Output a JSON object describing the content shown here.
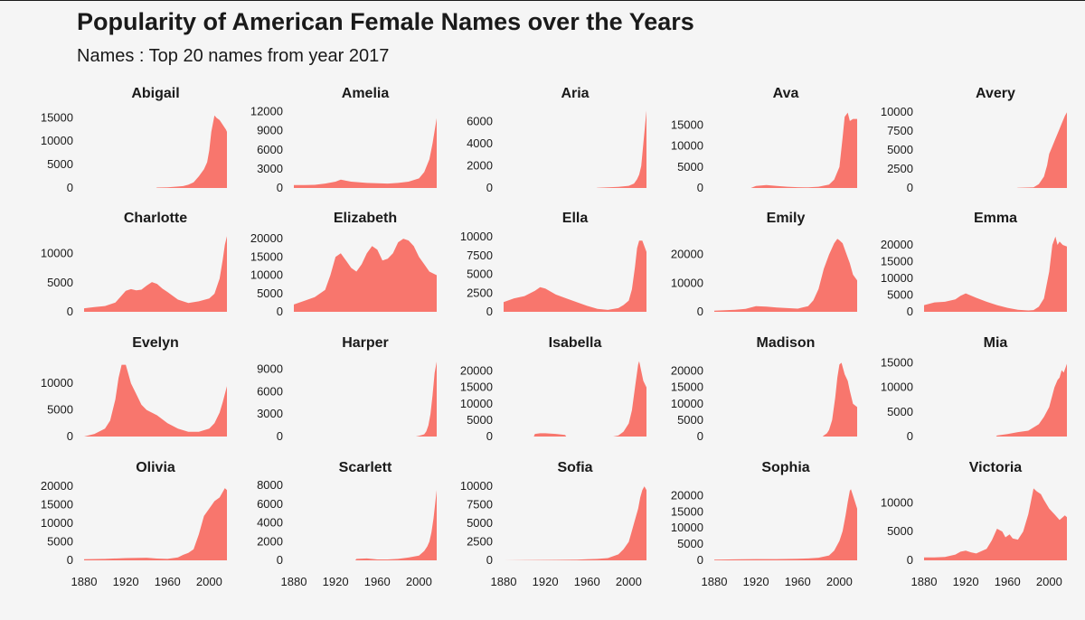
{
  "title": "Popularity of American Female Names over the Years",
  "subtitle": "Names : Top 20 names from year 2017",
  "colors": {
    "fill": "#f8766d",
    "background": "#f5f5f5",
    "text": "#1a1a1a"
  },
  "chart_data": {
    "type": "area",
    "layout": "small-multiples 4 rows x 5 columns",
    "grid": false,
    "x_range": [
      1880,
      2017
    ],
    "x_ticks": [
      1880,
      1920,
      1960,
      2000
    ],
    "panels": [
      {
        "name": "Abigail",
        "ylim": [
          0,
          17000
        ],
        "y_ticks": [
          0,
          5000,
          10000,
          15000
        ],
        "x": [
          1880,
          1949,
          1950,
          1960,
          1970,
          1975,
          1980,
          1985,
          1990,
          1995,
          1998,
          2000,
          2002,
          2005,
          2007,
          2010,
          2013,
          2016,
          2017
        ],
        "y": [
          0,
          0,
          100,
          150,
          300,
          400,
          700,
          1200,
          2500,
          4000,
          5500,
          8000,
          12000,
          15500,
          15000,
          14500,
          13500,
          12500,
          12000
        ]
      },
      {
        "name": "Amelia",
        "ylim": [
          0,
          12500
        ],
        "y_ticks": [
          0,
          3000,
          6000,
          9000,
          12000
        ],
        "x": [
          1880,
          1890,
          1900,
          1910,
          1920,
          1925,
          1935,
          1950,
          1960,
          1970,
          1980,
          1990,
          2000,
          2005,
          2010,
          2013,
          2015,
          2017
        ],
        "y": [
          450,
          450,
          500,
          700,
          1000,
          1300,
          1000,
          800,
          750,
          700,
          800,
          1000,
          1500,
          2500,
          4500,
          7000,
          9000,
          11000
        ]
      },
      {
        "name": "Aria",
        "ylim": [
          0,
          7200
        ],
        "y_ticks": [
          0,
          2000,
          4000,
          6000
        ],
        "x": [
          1880,
          1969,
          1970,
          1990,
          2000,
          2005,
          2008,
          2010,
          2012,
          2014,
          2016,
          2017
        ],
        "y": [
          0,
          0,
          20,
          100,
          200,
          400,
          800,
          1200,
          2000,
          4000,
          6000,
          7000
        ]
      },
      {
        "name": "Ava",
        "ylim": [
          0,
          19000
        ],
        "y_ticks": [
          0,
          5000,
          10000,
          15000
        ],
        "x": [
          1880,
          1915,
          1920,
          1930,
          1940,
          1950,
          1960,
          1970,
          1980,
          1990,
          1995,
          2000,
          2003,
          2005,
          2008,
          2010,
          2013,
          2017
        ],
        "y": [
          0,
          0,
          500,
          700,
          500,
          300,
          200,
          150,
          300,
          800,
          2000,
          5000,
          12000,
          17000,
          18000,
          16000,
          16500,
          16500
        ]
      },
      {
        "name": "Avery",
        "ylim": [
          0,
          10500
        ],
        "y_ticks": [
          0,
          2500,
          5000,
          7500,
          10000
        ],
        "x": [
          1880,
          1969,
          1970,
          1985,
          1990,
          1995,
          1998,
          2000,
          2003,
          2006,
          2009,
          2012,
          2015,
          2017
        ],
        "y": [
          0,
          0,
          20,
          100,
          500,
          1500,
          3000,
          4500,
          5500,
          6500,
          7500,
          8500,
          9500,
          10000
        ]
      },
      {
        "name": "Charlotte",
        "ylim": [
          0,
          13500
        ],
        "y_ticks": [
          0,
          5000,
          10000
        ],
        "x": [
          1880,
          1890,
          1900,
          1910,
          1915,
          1920,
          1925,
          1930,
          1935,
          1940,
          1945,
          1950,
          1955,
          1960,
          1970,
          1980,
          1990,
          2000,
          2005,
          2010,
          2013,
          2015,
          2017
        ],
        "y": [
          600,
          800,
          1000,
          1600,
          2600,
          3600,
          3900,
          3700,
          3800,
          4500,
          5100,
          4800,
          4000,
          3400,
          2100,
          1500,
          1800,
          2300,
          3100,
          5700,
          9000,
          11500,
          13000
        ]
      },
      {
        "name": "Elizabeth",
        "ylim": [
          0,
          21500
        ],
        "y_ticks": [
          0,
          5000,
          10000,
          15000,
          20000
        ],
        "x": [
          1880,
          1890,
          1900,
          1910,
          1915,
          1920,
          1925,
          1930,
          1935,
          1940,
          1945,
          1950,
          1955,
          1960,
          1965,
          1970,
          1975,
          1980,
          1985,
          1990,
          1995,
          2000,
          2005,
          2010,
          2017
        ],
        "y": [
          2000,
          3000,
          4000,
          6000,
          10000,
          15000,
          16000,
          14000,
          12000,
          11000,
          13000,
          16000,
          18000,
          17000,
          14000,
          14500,
          16000,
          19000,
          20000,
          19500,
          18000,
          15000,
          13000,
          11000,
          10000
        ]
      },
      {
        "name": "Ella",
        "ylim": [
          0,
          10500
        ],
        "y_ticks": [
          0,
          2500,
          5000,
          7500,
          10000
        ],
        "x": [
          1880,
          1890,
          1900,
          1910,
          1915,
          1920,
          1930,
          1940,
          1950,
          1960,
          1970,
          1980,
          1990,
          1995,
          2000,
          2003,
          2006,
          2008,
          2010,
          2013,
          2017
        ],
        "y": [
          1300,
          1800,
          2100,
          2800,
          3300,
          3100,
          2300,
          1800,
          1300,
          800,
          400,
          250,
          500,
          900,
          1500,
          3000,
          6000,
          8500,
          9500,
          9500,
          8000
        ]
      },
      {
        "name": "Emily",
        "ylim": [
          0,
          27500
        ],
        "y_ticks": [
          0,
          10000,
          20000
        ],
        "x": [
          1880,
          1900,
          1910,
          1920,
          1930,
          1940,
          1950,
          1960,
          1970,
          1975,
          1980,
          1985,
          1990,
          1995,
          1998,
          2000,
          2003,
          2006,
          2010,
          2013,
          2017
        ],
        "y": [
          400,
          700,
          1000,
          2000,
          1800,
          1500,
          1300,
          1100,
          2000,
          4000,
          8000,
          15000,
          20000,
          24000,
          25500,
          25000,
          24000,
          21000,
          17000,
          13000,
          11000
        ]
      },
      {
        "name": "Emma",
        "ylim": [
          0,
          23500
        ],
        "y_ticks": [
          0,
          5000,
          10000,
          15000,
          20000
        ],
        "x": [
          1880,
          1890,
          1900,
          1910,
          1915,
          1920,
          1930,
          1940,
          1950,
          1960,
          1970,
          1980,
          1985,
          1990,
          1995,
          2000,
          2003,
          2006,
          2008,
          2010,
          2013,
          2017
        ],
        "y": [
          2000,
          2800,
          3000,
          3700,
          4800,
          5500,
          4200,
          3000,
          2000,
          1200,
          600,
          400,
          500,
          1500,
          4000,
          12000,
          20000,
          22500,
          20000,
          21000,
          20000,
          19500
        ]
      },
      {
        "name": "Evelyn",
        "ylim": [
          0,
          14800
        ],
        "y_ticks": [
          0,
          5000,
          10000
        ],
        "x": [
          1880,
          1890,
          1900,
          1905,
          1910,
          1913,
          1916,
          1920,
          1925,
          1930,
          1935,
          1940,
          1950,
          1960,
          1970,
          1980,
          1990,
          2000,
          2005,
          2010,
          2013,
          2017
        ],
        "y": [
          0,
          500,
          1500,
          3000,
          7000,
          11000,
          13500,
          13500,
          10000,
          8000,
          6000,
          5000,
          4000,
          2500,
          1500,
          900,
          900,
          1500,
          2500,
          4500,
          6500,
          9500
        ]
      },
      {
        "name": "Harper",
        "ylim": [
          0,
          10500
        ],
        "y_ticks": [
          0,
          3000,
          6000,
          9000
        ],
        "x": [
          1880,
          1997,
          1998,
          2000,
          2003,
          2005,
          2007,
          2009,
          2011,
          2013,
          2015,
          2017
        ],
        "y": [
          0,
          0,
          20,
          100,
          200,
          300,
          700,
          1500,
          3000,
          5500,
          8500,
          10000
        ]
      },
      {
        "name": "Isabella",
        "ylim": [
          0,
          24000
        ],
        "y_ticks": [
          0,
          5000,
          10000,
          15000,
          20000
        ],
        "x": [
          1880,
          1909,
          1910,
          1915,
          1920,
          1930,
          1939,
          1940,
          1985,
          1990,
          1995,
          2000,
          2003,
          2006,
          2009,
          2010,
          2012,
          2014,
          2017
        ],
        "y": [
          0,
          0,
          800,
          1000,
          1000,
          800,
          500,
          0,
          0,
          300,
          1500,
          4000,
          8000,
          15000,
          22000,
          23000,
          20000,
          17000,
          15000
        ]
      },
      {
        "name": "Madison",
        "ylim": [
          0,
          24000
        ],
        "y_ticks": [
          0,
          5000,
          10000,
          15000,
          20000
        ],
        "x": [
          1880,
          1984,
          1985,
          1988,
          1990,
          1993,
          1996,
          1998,
          2000,
          2002,
          2005,
          2008,
          2010,
          2013,
          2017
        ],
        "y": [
          0,
          0,
          300,
          1000,
          2000,
          5000,
          12000,
          18000,
          22000,
          22500,
          19000,
          17000,
          14000,
          10000,
          9000
        ]
      },
      {
        "name": "Mia",
        "ylim": [
          0,
          16000
        ],
        "y_ticks": [
          0,
          5000,
          10000,
          15000
        ],
        "x": [
          1880,
          1949,
          1950,
          1960,
          1970,
          1980,
          1990,
          1995,
          2000,
          2005,
          2008,
          2010,
          2012,
          2014,
          2017
        ],
        "y": [
          0,
          0,
          200,
          500,
          900,
          1200,
          2500,
          4000,
          6000,
          10000,
          11500,
          12000,
          13500,
          13000,
          14800
        ]
      },
      {
        "name": "Olivia",
        "ylim": [
          0,
          21000
        ],
        "y_ticks": [
          0,
          5000,
          10000,
          15000,
          20000
        ],
        "x": [
          1880,
          1900,
          1920,
          1940,
          1950,
          1960,
          1970,
          1975,
          1980,
          1985,
          1990,
          1995,
          2000,
          2005,
          2010,
          2013,
          2015,
          2017
        ],
        "y": [
          300,
          400,
          600,
          700,
          500,
          400,
          800,
          1500,
          2000,
          3000,
          7000,
          12000,
          14000,
          16000,
          17000,
          18500,
          19500,
          19000
        ]
      },
      {
        "name": "Scarlett",
        "ylim": [
          0,
          8300
        ],
        "y_ticks": [
          0,
          2000,
          4000,
          6000,
          8000
        ],
        "x": [
          1880,
          1939,
          1940,
          1950,
          1960,
          1970,
          1980,
          1990,
          2000,
          2005,
          2008,
          2010,
          2012,
          2014,
          2016,
          2017
        ],
        "y": [
          0,
          0,
          150,
          200,
          100,
          100,
          150,
          300,
          500,
          1000,
          1500,
          2000,
          3000,
          4500,
          6500,
          7500
        ]
      },
      {
        "name": "Sofia",
        "ylim": [
          0,
          10500
        ],
        "y_ticks": [
          0,
          2500,
          5000,
          7500,
          10000
        ],
        "x": [
          1880,
          1900,
          1930,
          1950,
          1960,
          1970,
          1980,
          1990,
          1995,
          2000,
          2003,
          2005,
          2007,
          2009,
          2011,
          2013,
          2015,
          2017
        ],
        "y": [
          0,
          30,
          60,
          100,
          150,
          200,
          300,
          800,
          1500,
          2500,
          4000,
          5000,
          6000,
          7000,
          8500,
          9500,
          10000,
          9500
        ]
      },
      {
        "name": "Sophia",
        "ylim": [
          0,
          24000
        ],
        "y_ticks": [
          0,
          5000,
          10000,
          15000,
          20000
        ],
        "x": [
          1880,
          1900,
          1920,
          1940,
          1960,
          1970,
          1980,
          1990,
          1995,
          2000,
          2003,
          2006,
          2008,
          2010,
          2011,
          2013,
          2015,
          2017
        ],
        "y": [
          200,
          300,
          400,
          400,
          500,
          600,
          800,
          1500,
          3000,
          6000,
          9000,
          14000,
          18000,
          21500,
          22000,
          20000,
          18000,
          16000
        ]
      },
      {
        "name": "Victoria",
        "ylim": [
          0,
          13500
        ],
        "y_ticks": [
          0,
          5000,
          10000
        ],
        "x": [
          1880,
          1890,
          1900,
          1910,
          1915,
          1920,
          1925,
          1930,
          1940,
          1945,
          1950,
          1955,
          1958,
          1962,
          1965,
          1970,
          1975,
          1980,
          1985,
          1988,
          1992,
          1995,
          2000,
          2005,
          2010,
          2015,
          2017
        ],
        "y": [
          500,
          500,
          600,
          1000,
          1500,
          1700,
          1400,
          1200,
          2000,
          3500,
          5500,
          5000,
          4000,
          4500,
          3800,
          3600,
          5000,
          8000,
          12500,
          12000,
          11500,
          10500,
          9000,
          8000,
          7000,
          7800,
          7500
        ]
      }
    ]
  }
}
